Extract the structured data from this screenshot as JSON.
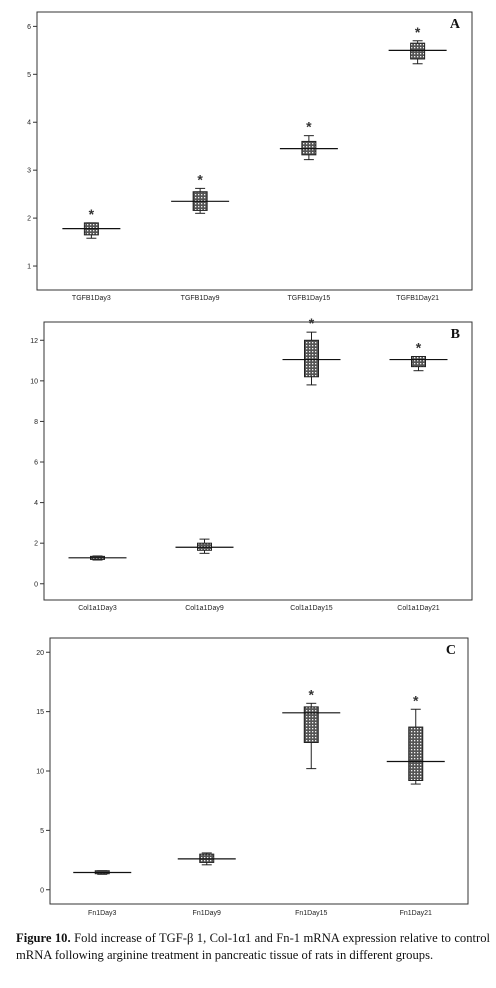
{
  "chart_data": [
    {
      "type": "box",
      "panel_label": "A",
      "categories": [
        "TGFB1Day3",
        "TGFB1Day9",
        "TGFB1Day15",
        "TGFB1Day21"
      ],
      "ylim": [
        0.5,
        6.3
      ],
      "yticks": [
        1,
        2,
        3,
        4,
        5,
        6
      ],
      "boxes": [
        {
          "min": 1.58,
          "q1": 1.65,
          "median": 1.78,
          "q3": 1.9,
          "max": 1.9,
          "star": "*"
        },
        {
          "min": 2.1,
          "q1": 2.16,
          "median": 2.35,
          "q3": 2.55,
          "max": 2.62,
          "star": "*"
        },
        {
          "min": 3.22,
          "q1": 3.32,
          "median": 3.45,
          "q3": 3.6,
          "max": 3.72,
          "star": "*"
        },
        {
          "min": 5.22,
          "q1": 5.32,
          "median": 5.5,
          "q3": 5.65,
          "max": 5.7,
          "star": "*"
        }
      ],
      "xlabel": "",
      "ylabel": "",
      "grid": false
    },
    {
      "type": "box",
      "panel_label": "B",
      "categories": [
        "Col1a1Day3",
        "Col1a1Day9",
        "Col1a1Day15",
        "Col1a1Day21"
      ],
      "ylim": [
        -0.8,
        12.9
      ],
      "yticks": [
        0,
        2,
        4,
        6,
        8,
        10,
        12
      ],
      "boxes": [
        {
          "min": 1.17,
          "q1": 1.2,
          "median": 1.28,
          "q3": 1.35,
          "max": 1.37,
          "star": ""
        },
        {
          "min": 1.5,
          "q1": 1.65,
          "median": 1.8,
          "q3": 2.0,
          "max": 2.2,
          "star": ""
        },
        {
          "min": 9.8,
          "q1": 10.2,
          "median": 11.05,
          "q3": 12.0,
          "max": 12.4,
          "star": "*"
        },
        {
          "min": 10.5,
          "q1": 10.7,
          "median": 11.05,
          "q3": 11.2,
          "max": 11.2,
          "star": "*"
        }
      ],
      "xlabel": "",
      "ylabel": "",
      "grid": false
    },
    {
      "type": "box",
      "panel_label": "C",
      "categories": [
        "Fn1Day3",
        "Fn1Day9",
        "Fn1Day15",
        "Fn1Day21"
      ],
      "ylim": [
        -1.2,
        21.2
      ],
      "yticks": [
        0,
        5,
        10,
        15,
        20
      ],
      "boxes": [
        {
          "min": 1.3,
          "q1": 1.35,
          "median": 1.45,
          "q3": 1.6,
          "max": 1.6,
          "star": ""
        },
        {
          "min": 2.1,
          "q1": 2.3,
          "median": 2.6,
          "q3": 3.0,
          "max": 3.1,
          "star": ""
        },
        {
          "min": 10.2,
          "q1": 12.4,
          "median": 14.9,
          "q3": 15.4,
          "max": 15.7,
          "star": "*"
        },
        {
          "min": 8.9,
          "q1": 9.2,
          "median": 10.8,
          "q3": 13.7,
          "max": 15.2,
          "star": "*"
        }
      ],
      "xlabel": "",
      "ylabel": "",
      "grid": false
    }
  ],
  "caption": {
    "figure_label": "Figure 10.",
    "text": "Fold increase of TGF-β 1, Col-1α1 and Fn-1 mRNA expression relative to control mRNA following arginine treatment in pancreatic tissue of rats in different groups."
  }
}
